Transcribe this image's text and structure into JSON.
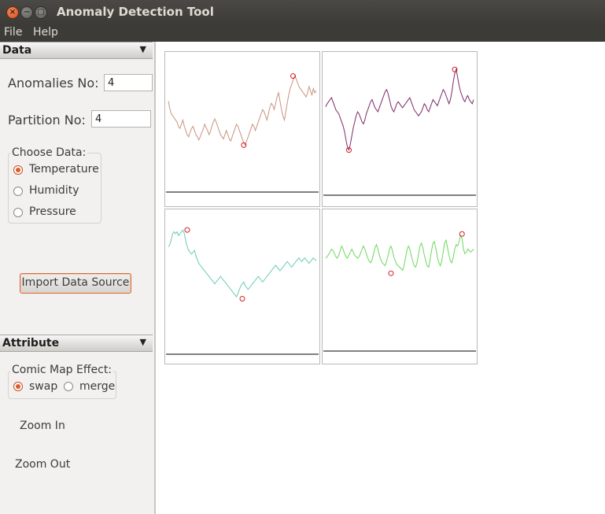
{
  "window": {
    "title": "Anomaly Detection Tool",
    "close_glyph": "×",
    "min_glyph": "−",
    "max_glyph": "□"
  },
  "menubar": {
    "items": [
      "File",
      "Help"
    ]
  },
  "data_section": {
    "header": "Data",
    "anomalies_label": "Anomalies No:",
    "anomalies_value": "4",
    "partition_label": "Partition No:",
    "partition_value": "4",
    "choose_label": "Choose Data:",
    "options": [
      "Temperature",
      "Humidity",
      "Pressure"
    ],
    "selected": "Temperature",
    "import_button": "Import Data Source"
  },
  "attribute_section": {
    "header": "Attribute",
    "comic_label": "Comic Map Effect:",
    "options": [
      "swap",
      "merge"
    ],
    "selected": "swap",
    "zoom_in": "Zoom In",
    "zoom_out": "Zoom Out"
  },
  "icons": {
    "collapse": "triangle-down-icon"
  },
  "colors": {
    "accent": "#e2582a",
    "titlebar": "#3c3b37",
    "series": [
      "#c9937d",
      "#7d2a6a",
      "#6cc9b5",
      "#6ad85c"
    ],
    "anomaly_marker": "#d42020"
  },
  "chart_data": [
    {
      "type": "line",
      "series_color": "#c9937d",
      "values": [
        62,
        55,
        50,
        48,
        46,
        44,
        42,
        38,
        36,
        40,
        44,
        38,
        34,
        30,
        28,
        32,
        36,
        38,
        34,
        30,
        28,
        25,
        28,
        32,
        35,
        40,
        37,
        34,
        30,
        33,
        38,
        42,
        45,
        42,
        38,
        34,
        30,
        28,
        26,
        30,
        34,
        30,
        26,
        24,
        28,
        32,
        36,
        40,
        38,
        34,
        30,
        26,
        22,
        20,
        24,
        28,
        32,
        36,
        40,
        38,
        34,
        38,
        42,
        46,
        50,
        54,
        52,
        48,
        44,
        50,
        56,
        60,
        58,
        54,
        60,
        66,
        70,
        62,
        54,
        48,
        44,
        52,
        60,
        68,
        74,
        78,
        82,
        86,
        84,
        80,
        76,
        74,
        72,
        70,
        68,
        66,
        70,
        76,
        72,
        68,
        74,
        70,
        72
      ],
      "anomalies": [
        [
          52,
          20
        ],
        [
          86,
          86
        ]
      ],
      "ylim": [
        0,
        100
      ]
    },
    {
      "type": "line",
      "series_color": "#7d2a6a",
      "values": [
        55,
        58,
        60,
        62,
        64,
        60,
        56,
        52,
        50,
        48,
        44,
        40,
        36,
        30,
        22,
        15,
        12,
        18,
        26,
        34,
        40,
        46,
        50,
        48,
        44,
        40,
        38,
        42,
        48,
        52,
        56,
        60,
        62,
        58,
        54,
        52,
        50,
        54,
        58,
        62,
        66,
        70,
        72,
        68,
        62,
        56,
        52,
        50,
        54,
        58,
        60,
        58,
        56,
        54,
        56,
        58,
        60,
        62,
        64,
        60,
        56,
        52,
        50,
        48,
        46,
        48,
        50,
        54,
        58,
        56,
        52,
        50,
        54,
        58,
        62,
        60,
        58,
        56,
        60,
        64,
        68,
        72,
        70,
        66,
        62,
        58,
        62,
        70,
        80,
        88,
        92,
        84,
        76,
        70,
        66,
        62,
        60,
        64,
        66,
        62,
        60,
        58,
        62
      ],
      "anomalies": [
        [
          16,
          12
        ],
        [
          89,
          92
        ]
      ],
      "ylim": [
        0,
        100
      ]
    },
    {
      "type": "line",
      "series_color": "#6cc9b5",
      "values": [
        70,
        72,
        78,
        84,
        86,
        84,
        86,
        82,
        84,
        86,
        88,
        84,
        76,
        70,
        66,
        64,
        62,
        64,
        66,
        60,
        56,
        52,
        50,
        48,
        46,
        44,
        42,
        40,
        38,
        36,
        34,
        32,
        30,
        32,
        34,
        36,
        38,
        36,
        34,
        32,
        30,
        28,
        26,
        24,
        22,
        20,
        18,
        16,
        20,
        24,
        28,
        30,
        32,
        28,
        26,
        24,
        26,
        28,
        30,
        32,
        34,
        36,
        38,
        36,
        34,
        32,
        34,
        36,
        38,
        40,
        42,
        44,
        46,
        48,
        50,
        48,
        46,
        44,
        46,
        48,
        50,
        52,
        54,
        52,
        50,
        48,
        50,
        52,
        54,
        56,
        58,
        56,
        54,
        56,
        58,
        56,
        54,
        52,
        54,
        56,
        58,
        56,
        55
      ],
      "anomalies": [
        [
          13,
          88
        ],
        [
          51,
          14
        ]
      ],
      "ylim": [
        0,
        100
      ]
    },
    {
      "type": "line",
      "series_color": "#6ad85c",
      "values": [
        50,
        52,
        55,
        58,
        62,
        60,
        56,
        52,
        50,
        54,
        60,
        66,
        62,
        56,
        52,
        50,
        54,
        58,
        62,
        58,
        54,
        52,
        50,
        52,
        56,
        62,
        66,
        62,
        56,
        50,
        46,
        44,
        48,
        56,
        64,
        68,
        62,
        54,
        48,
        44,
        42,
        40,
        46,
        54,
        62,
        66,
        60,
        52,
        46,
        42,
        40,
        38,
        36,
        34,
        40,
        50,
        60,
        66,
        62,
        54,
        46,
        40,
        38,
        44,
        56,
        66,
        70,
        64,
        54,
        46,
        40,
        38,
        48,
        60,
        70,
        72,
        62,
        52,
        44,
        40,
        46,
        58,
        70,
        74,
        64,
        54,
        46,
        44,
        52,
        62,
        68,
        66,
        72,
        80,
        76,
        62,
        56,
        58,
        62,
        60,
        58,
        60,
        62
      ],
      "anomalies": [
        [
          45,
          30
        ],
        [
          94,
          82
        ]
      ],
      "ylim": [
        0,
        100
      ]
    }
  ]
}
